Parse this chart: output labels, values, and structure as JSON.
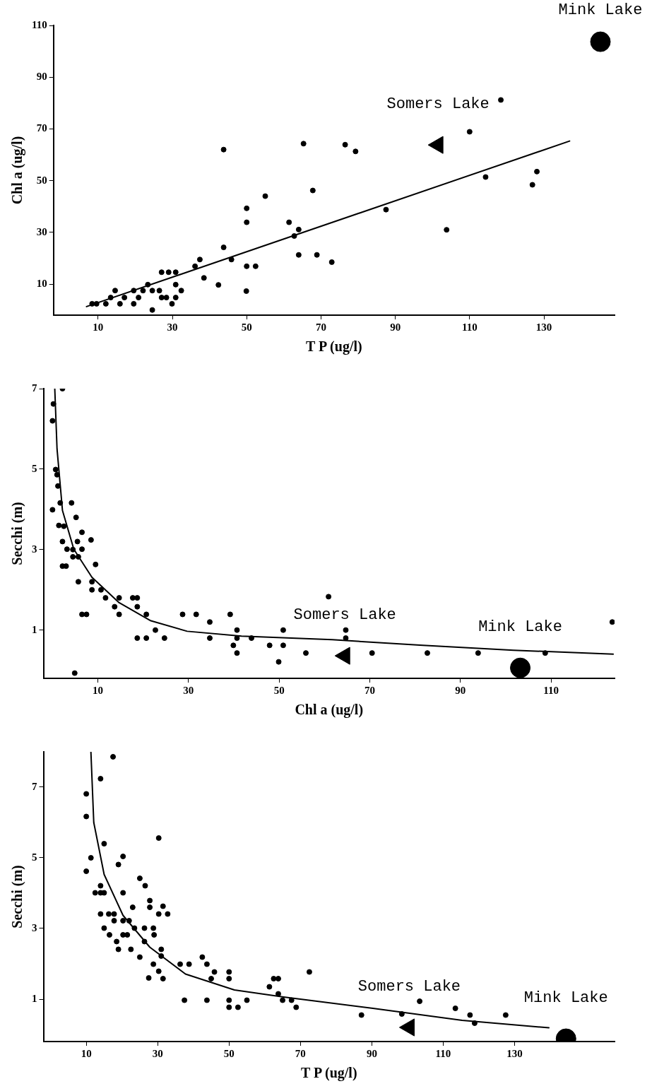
{
  "chart_data": [
    {
      "type": "scatter",
      "xlabel": "T P (ug/l)",
      "ylabel": "Chl a (ug/l)",
      "xlim": [
        -2,
        149
      ],
      "ylim": [
        -2,
        110
      ],
      "xticks": [
        10,
        30,
        50,
        70,
        90,
        110,
        130
      ],
      "yticks": [
        10,
        30,
        50,
        70,
        90,
        110
      ],
      "marker": "circle",
      "series": [
        {
          "color": "#000000",
          "x": [
            118.4,
            110,
            114.3,
            126.9,
            128.1,
            103.8,
            87.5,
            72.9,
            68.9,
            64,
            64,
            62.8,
            61.4,
            67.8,
            65.3,
            76.5,
            79.3,
            43.8,
            55,
            50,
            50,
            50,
            52.4,
            49.9,
            43.8,
            45.9,
            42.4,
            38.5,
            37.4,
            36.1,
            30.9,
            27.1,
            29,
            32.4,
            30.9,
            29.9,
            28.4,
            30.9,
            27.1,
            26.5,
            24.6,
            23.4,
            24.6,
            22.1,
            19.6,
            20.9,
            17.1,
            14.6,
            15.9,
            19.6,
            13.4,
            12.1,
            9.6,
            8.4
          ],
          "values": [
            81.2,
            68.9,
            51.4,
            48.4,
            53.5,
            31,
            38.8,
            18.5,
            21.3,
            21.3,
            31.1,
            28.6,
            33.9,
            46.2,
            64.3,
            63.9,
            61.3,
            62,
            44,
            39.3,
            33.9,
            16.9,
            16.9,
            7.3,
            24.2,
            19.5,
            9.7,
            12.4,
            19.5,
            16.9,
            14.6,
            14.6,
            14.6,
            7.5,
            9.8,
            2.4,
            4.8,
            4.8,
            4.8,
            7.5,
            7.5,
            9.8,
            0,
            7.5,
            7.5,
            4.8,
            4.8,
            7.5,
            2.4,
            2.4,
            4.8,
            2.4,
            2.4,
            2.4
          ]
        },
        {
          "type": "line",
          "color": "#000000",
          "marker": "none",
          "x": [
            6.9,
            136.9
          ],
          "values": [
            1.3,
            65.3
          ]
        },
        {
          "name": "Somers Lake",
          "color": "#000000",
          "marker": "triangle",
          "x": [
            101.5
          ],
          "values": [
            63.8
          ]
        },
        {
          "name": "Mink Lake",
          "color": "#000000",
          "marker": "circle",
          "x": [
            145.2
          ],
          "values": [
            103.7
          ]
        }
      ]
    },
    {
      "type": "scatter",
      "xlabel": "Chl a (ug/l)",
      "ylabel": "Secchi (m)",
      "xlim": [
        -2,
        124
      ],
      "ylim": [
        -0.2,
        7
      ],
      "xticks": [
        10,
        30,
        50,
        70,
        90,
        110
      ],
      "yticks": [
        1,
        3,
        5,
        7
      ],
      "marker": "circle",
      "series": [
        {
          "color": "#000000",
          "x": [
            123.5,
            108.7,
            93.9,
            82.7,
            70.5,
            64.7,
            64.7,
            60.9,
            55.9,
            50.9,
            50.9,
            49.9,
            47.9,
            43.9,
            40.7,
            40.7,
            40.7,
            39.9,
            39.2,
            34.7,
            34.7,
            31.7,
            28.7,
            24.7,
            22.7,
            20.7,
            18.7,
            20.7,
            18.7,
            18.7,
            17.7,
            14.7,
            14.7,
            13.7,
            11.7,
            10.7,
            9.5,
            8.7,
            8.7,
            8.5,
            7.5,
            6.5,
            6.5,
            6.5,
            5.7,
            5.7,
            5.5,
            5.2,
            4.5,
            4.5,
            4.2,
            3.2,
            3.0,
            2.2,
            2.2,
            2.5,
            1.7,
            1.4,
            0,
            1.2,
            1.0,
            0.7,
            0,
            0.2,
            2.2,
            4.9
          ],
          "values": [
            1.2,
            0.43,
            0.43,
            0.43,
            0.43,
            1.0,
            0.8,
            1.83,
            0.43,
            1.0,
            0.62,
            0.21,
            0.62,
            0.8,
            1.0,
            0.8,
            0.43,
            0.62,
            1.39,
            1.2,
            0.8,
            1.39,
            1.39,
            0.8,
            1.0,
            0.8,
            0.8,
            1.39,
            1.8,
            1.58,
            1.8,
            1.39,
            1.8,
            1.58,
            1.8,
            2.0,
            2.63,
            2.0,
            2.2,
            3.24,
            1.39,
            1.39,
            3.01,
            3.43,
            2.2,
            2.82,
            3.2,
            3.8,
            3.0,
            2.82,
            4.16,
            3.01,
            2.59,
            2.59,
            3.2,
            3.58,
            4.16,
            3.6,
            3.99,
            4.58,
            4.86,
            4.99,
            6.2,
            6.62,
            7.0,
            -0.07
          ]
        },
        {
          "type": "line",
          "color": "#000000",
          "marker": "none",
          "x": [
            0.5,
            1,
            2.2,
            4.7,
            8.7,
            14.7,
            21.7,
            29.7,
            41.7,
            61.7,
            81.7,
            101.7,
            123.7
          ],
          "values": [
            7,
            5.5,
            3.97,
            3.01,
            2.31,
            1.68,
            1.23,
            0.97,
            0.85,
            0.76,
            0.62,
            0.5,
            0.4
          ]
        },
        {
          "name": "Somers Lake",
          "color": "#000000",
          "marker": "triangle",
          "x": [
            64.5
          ],
          "values": [
            0.36
          ]
        },
        {
          "name": "Mink Lake",
          "color": "#000000",
          "marker": "circle",
          "x": [
            103.2
          ],
          "values": [
            0.06
          ]
        }
      ]
    },
    {
      "type": "scatter",
      "xlabel": "T P (ug/l)",
      "ylabel": "Secchi (m)",
      "xlim": [
        -2,
        158
      ],
      "ylim": [
        -0.2,
        8
      ],
      "xticks": [
        10,
        30,
        50,
        70,
        90,
        110,
        130
      ],
      "yticks": [
        1,
        3,
        5,
        7
      ],
      "marker": "circle",
      "series": [
        {
          "color": "#000000",
          "x": [
            17.5,
            14,
            10,
            10,
            30.3,
            15,
            11.3,
            20.3,
            19,
            10,
            25,
            26.5,
            12.5,
            14,
            15,
            20.3,
            14,
            27.8,
            27.8,
            31.5,
            32.8,
            30.3,
            23,
            14,
            16.3,
            17.8,
            17.8,
            20.3,
            22,
            15,
            23.5,
            26.3,
            28.8,
            16.5,
            20.3,
            21.5,
            29,
            18.5,
            26.3,
            19,
            22.5,
            31,
            31,
            25,
            28.8,
            30.3,
            27.5,
            31.5,
            36.3,
            38.8,
            42.5,
            43.8,
            45.9,
            45,
            50,
            50,
            37.5,
            43.8,
            50,
            50,
            52.5,
            55,
            61.3,
            62.5,
            63.8,
            63.8,
            65,
            67.5,
            68.8,
            72.5,
            87.1,
            98.4,
            103.4,
            113.4,
            117.5,
            118.8,
            127.5
          ],
          "values": [
            7.86,
            7.24,
            6.81,
            6.17,
            5.56,
            5.4,
            5,
            5.04,
            4.81,
            4.62,
            4.42,
            4.21,
            4.01,
            4.01,
            4.01,
            4.01,
            4.21,
            3.79,
            3.6,
            3.63,
            3.41,
            3.41,
            3.6,
            3.41,
            3.41,
            3.41,
            3.22,
            3.22,
            3.22,
            3.01,
            3.01,
            3.01,
            3.01,
            2.82,
            2.82,
            2.82,
            2.82,
            2.63,
            2.63,
            2.41,
            2.41,
            2.41,
            2.22,
            2.19,
            1.99,
            1.79,
            1.6,
            1.58,
            1.99,
            1.99,
            2.19,
            1.99,
            1.77,
            1.58,
            1.77,
            1.58,
            0.97,
            0.97,
            0.97,
            0.77,
            0.77,
            0.97,
            1.35,
            1.58,
            1.58,
            1.15,
            0.97,
            0.97,
            0.77,
            1.77,
            0.55,
            0.58,
            0.94,
            0.74,
            0.55,
            0.32,
            0.55
          ]
        },
        {
          "type": "line",
          "color": "#000000",
          "marker": "none",
          "x": [
            11.3,
            12.1,
            15,
            20.3,
            27.8,
            37.8,
            51.5,
            65.3,
            90.3,
            115.3,
            139.6
          ],
          "values": [
            7.99,
            6,
            4.53,
            3.37,
            2.47,
            1.71,
            1.26,
            1.06,
            0.74,
            0.4,
            0.19
          ]
        },
        {
          "name": "Somers Lake",
          "color": "#000000",
          "marker": "triangle",
          "x": [
            100.5
          ],
          "values": [
            0.2
          ]
        },
        {
          "name": "Mink Lake",
          "color": "#000000",
          "marker": "circle",
          "x": [
            144.4
          ],
          "values": [
            -0.12
          ]
        }
      ]
    }
  ]
}
